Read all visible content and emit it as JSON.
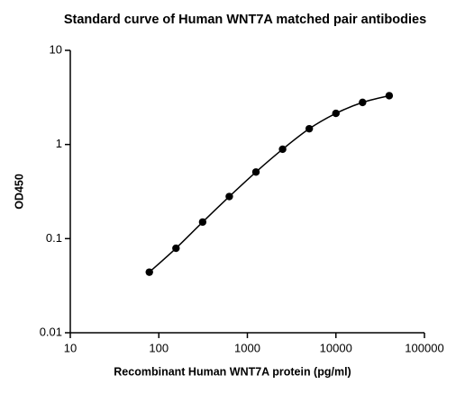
{
  "chart_data": {
    "type": "scatter",
    "title": "Standard curve of Human WNT7A matched pair antibodies",
    "x_label": "Recombinant Human WNT7A protein (pg/ml)",
    "y_label": "OD450",
    "x": [
      78.125,
      156.25,
      312.5,
      625,
      1250,
      2500,
      5000,
      10000,
      20000,
      40000
    ],
    "series": [
      {
        "color": "#000000",
        "values": [
          0.044,
          0.079,
          0.15,
          0.28,
          0.51,
          0.89,
          1.47,
          2.14,
          2.8,
          3.3
        ]
      }
    ],
    "xlim": [
      10,
      100000
    ],
    "ylim": [
      0.01,
      10
    ],
    "xticks": [
      10,
      100,
      1000,
      10000,
      100000
    ],
    "yticks": [
      0.01,
      0.1,
      1,
      10
    ],
    "xscale": "log",
    "yscale": "log"
  }
}
